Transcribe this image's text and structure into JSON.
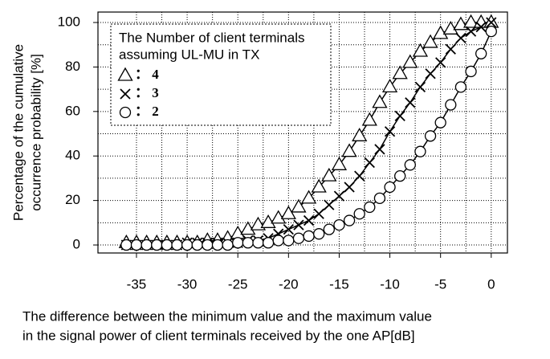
{
  "chart_data": {
    "type": "line",
    "xlabel": [
      "The difference between the minimum  value and the maximum  value",
      "in the signal power of client terminals  received by the one AP[dB]"
    ],
    "ylabel": [
      "Percentage of the cumulative",
      "occurrence probability [%]"
    ],
    "legend_title": [
      "The Number of client terminals",
      "assuming UL-MU in TX"
    ],
    "x": [
      -36,
      -35,
      -34,
      -33,
      -32,
      -31,
      -30,
      -29,
      -28,
      -27,
      -26,
      -25,
      -24,
      -23,
      -22,
      -21,
      -20,
      -19,
      -18,
      -17,
      -16,
      -15,
      -14,
      -13,
      -12,
      -11,
      -10,
      -9,
      -8,
      -7,
      -6,
      -5,
      -4,
      -3,
      -2,
      -1,
      0
    ],
    "series": [
      {
        "name": "： 4",
        "marker": "triangle",
        "color": "#000000",
        "values": [
          1,
          1,
          1,
          1,
          1,
          1,
          1,
          1,
          2,
          2,
          3,
          5,
          7,
          9,
          10,
          12,
          14,
          17,
          21,
          26,
          31,
          36,
          42,
          49,
          56,
          64,
          71,
          77,
          82,
          87,
          91,
          95,
          97,
          99,
          100,
          100,
          100
        ]
      },
      {
        "name": "： 3",
        "marker": "cross",
        "color": "#000000",
        "values": [
          0,
          0,
          0,
          0,
          0,
          0,
          1,
          1,
          1,
          1,
          1,
          1,
          2,
          2,
          3,
          5,
          7,
          9,
          11,
          14,
          18,
          22,
          26,
          31,
          37,
          43,
          51,
          58,
          64,
          71,
          77,
          82,
          88,
          93,
          96,
          98,
          100
        ]
      },
      {
        "name": "： 2",
        "marker": "circle",
        "color": "#000000",
        "values": [
          0,
          0,
          0,
          0,
          0,
          0,
          0,
          0,
          0,
          0,
          0,
          1,
          1,
          1,
          1,
          2,
          2,
          3,
          4,
          5,
          7,
          9,
          11,
          14,
          17,
          21,
          26,
          31,
          36,
          42,
          49,
          55,
          63,
          71,
          78,
          86,
          96
        ]
      }
    ],
    "xlim": [
      -38.8,
      1.6
    ],
    "ylim": [
      -3.6,
      104.7
    ],
    "xticks": [
      -35,
      -30,
      -25,
      -20,
      -15,
      -10,
      -5,
      0
    ],
    "yticks": [
      0,
      20,
      40,
      60,
      80,
      100
    ],
    "grid": true
  }
}
